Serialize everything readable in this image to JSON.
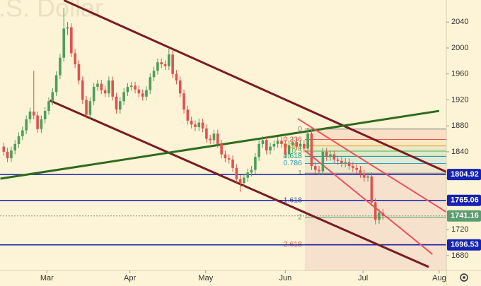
{
  "chart_data": {
    "type": "candlestick",
    "watermark": "U.S. Dollar",
    "up_color": "#4c9f5a",
    "down_color": "#e0524f",
    "open": [
      1848,
      1840,
      1830,
      1842,
      1852,
      1864,
      1873,
      1890,
      1902,
      1896,
      1875,
      1890,
      1903,
      1918,
      1932,
      1958,
      1985,
      2030,
      2032,
      1992,
      1975,
      1950,
      1920,
      1897,
      1918,
      1940,
      1945,
      1935,
      1930,
      1950,
      1925,
      1905,
      1918,
      1932,
      1940,
      1942,
      1936,
      1930,
      1925,
      1935,
      1955,
      1965,
      1978,
      1975,
      1972,
      1990,
      1960,
      1950,
      1930,
      1905,
      1888,
      1882,
      1878,
      1885,
      1876,
      1860,
      1858,
      1868,
      1852,
      1836,
      1830,
      1828,
      1815,
      1798,
      1792,
      1800,
      1808,
      1812,
      1832,
      1852,
      1858,
      1842,
      1848,
      1852,
      1857,
      1852,
      1836,
      1850,
      1855,
      1848,
      1852,
      1845,
      1868,
      1818,
      1812,
      1810,
      1840,
      1832,
      1836,
      1828,
      1826,
      1822,
      1824,
      1818,
      1815,
      1812,
      1806,
      1800,
      1802,
      1762,
      1735,
      1746
    ],
    "high": [
      1854,
      1846,
      1848,
      1858,
      1870,
      1879,
      1896,
      1908,
      1965,
      1902,
      1896,
      1909,
      1924,
      1938,
      1964,
      1991,
      2062,
      2040,
      2038,
      1998,
      1981,
      1956,
      1926,
      1924,
      1946,
      1951,
      1951,
      1941,
      1956,
      1956,
      1931,
      1924,
      1938,
      1946,
      1948,
      1948,
      1942,
      1936,
      1941,
      1961,
      1971,
      1984,
      1984,
      1981,
      2000,
      1996,
      1966,
      1956,
      1936,
      1911,
      1894,
      1888,
      1891,
      1891,
      1882,
      1866,
      1874,
      1874,
      1858,
      1842,
      1836,
      1834,
      1821,
      1804,
      1806,
      1814,
      1818,
      1838,
      1858,
      1864,
      1864,
      1854,
      1858,
      1863,
      1863,
      1858,
      1856,
      1861,
      1861,
      1858,
      1858,
      1877,
      1874,
      1824,
      1818,
      1846,
      1846,
      1842,
      1842,
      1834,
      1832,
      1830,
      1830,
      1824,
      1821,
      1818,
      1812,
      1808,
      1808,
      1768,
      1752,
      1752
    ],
    "low": [
      1834,
      1824,
      1824,
      1836,
      1846,
      1858,
      1867,
      1884,
      1890,
      1869,
      1869,
      1884,
      1897,
      1912,
      1926,
      1952,
      1979,
      2020,
      1986,
      1969,
      1944,
      1914,
      1891,
      1891,
      1912,
      1934,
      1929,
      1924,
      1924,
      1919,
      1899,
      1899,
      1912,
      1926,
      1934,
      1930,
      1924,
      1919,
      1919,
      1929,
      1949,
      1959,
      1969,
      1966,
      1966,
      1954,
      1944,
      1924,
      1899,
      1882,
      1876,
      1872,
      1872,
      1870,
      1854,
      1852,
      1852,
      1846,
      1830,
      1824,
      1822,
      1809,
      1792,
      1778,
      1786,
      1794,
      1802,
      1806,
      1826,
      1846,
      1836,
      1836,
      1842,
      1846,
      1846,
      1830,
      1830,
      1844,
      1842,
      1842,
      1839,
      1839,
      1812,
      1806,
      1804,
      1804,
      1826,
      1826,
      1822,
      1820,
      1816,
      1816,
      1812,
      1809,
      1806,
      1800,
      1794,
      1794,
      1756,
      1728,
      1729,
      1735
    ],
    "close": [
      1840,
      1830,
      1842,
      1852,
      1864,
      1873,
      1890,
      1902,
      1896,
      1875,
      1890,
      1903,
      1918,
      1932,
      1958,
      1985,
      2030,
      2032,
      1992,
      1975,
      1950,
      1920,
      1897,
      1918,
      1940,
      1945,
      1935,
      1930,
      1950,
      1925,
      1905,
      1918,
      1932,
      1940,
      1942,
      1936,
      1930,
      1925,
      1935,
      1955,
      1965,
      1978,
      1975,
      1972,
      1990,
      1960,
      1950,
      1930,
      1905,
      1888,
      1882,
      1878,
      1885,
      1876,
      1860,
      1858,
      1868,
      1852,
      1836,
      1830,
      1828,
      1815,
      1798,
      1792,
      1800,
      1808,
      1812,
      1832,
      1852,
      1858,
      1842,
      1848,
      1852,
      1857,
      1852,
      1836,
      1850,
      1855,
      1848,
      1852,
      1845,
      1868,
      1818,
      1812,
      1810,
      1840,
      1832,
      1836,
      1828,
      1826,
      1822,
      1824,
      1818,
      1815,
      1812,
      1806,
      1800,
      1802,
      1762,
      1735,
      1746,
      1741
    ],
    "xlim": [
      -1,
      117.9
    ],
    "xticks": [
      {
        "value": 11.5,
        "label": "Mar"
      },
      {
        "value": 33.6,
        "label": "Apr"
      },
      {
        "value": 53.8,
        "label": "May"
      },
      {
        "value": 75,
        "label": "Jun"
      },
      {
        "value": 95.7,
        "label": "Jul"
      },
      {
        "value": 116,
        "label": "Aug"
      }
    ],
    "ylim": [
      1657,
      2074
    ],
    "yticks": [
      1680,
      1720,
      1760,
      1800,
      1840,
      1880,
      1920,
      1960,
      2000,
      2040
    ],
    "lines": [
      {
        "x": [
          16,
          117.9
        ],
        "y": [
          2073.7,
          1809
        ],
        "color": "#7a1c24",
        "width": 3
      },
      {
        "x": [
          12.3,
          113.2
        ],
        "y": [
          1919,
          1662.5
        ],
        "color": "#7a1c24",
        "width": 3
      },
      {
        "x": [
          -0.9,
          116
        ],
        "y": [
          1798.5,
          1903
        ],
        "color": "#2e6b1e",
        "width": 3
      },
      {
        "x": [
          78.3,
          117.9
        ],
        "y": [
          1891,
          1747
        ],
        "color": "#f0505e",
        "width": 2
      },
      {
        "x": [
          80.2,
          114.2
        ],
        "y": [
          1842,
          1682
        ],
        "color": "#f0505e",
        "width": 2
      }
    ],
    "fib": {
      "x_start": 80.2,
      "levels": [
        {
          "ratio": 0,
          "value": 1875,
          "color": "#808080"
        },
        {
          "ratio": 0.236,
          "value": 1859,
          "color": "#e0524f"
        },
        {
          "ratio": 0.382,
          "value": 1849,
          "color": "#ef9a2a"
        },
        {
          "ratio": 0.5,
          "value": 1841,
          "color": "#4caf50"
        },
        {
          "ratio": 0.618,
          "value": 1833,
          "color": "#089981"
        },
        {
          "ratio": 0.786,
          "value": 1822,
          "color": "#2aa0c0"
        },
        {
          "ratio": 1,
          "value": 1807,
          "color": "#808080"
        },
        {
          "ratio": 1.618,
          "value": 1765,
          "color": "#3a4fa0"
        },
        {
          "ratio": 2,
          "value": 1739,
          "color": "#4caf50"
        },
        {
          "ratio": 2.618,
          "value": 1697,
          "color": "#e0524f"
        }
      ]
    },
    "levels": [
      {
        "value": 1804.92,
        "color": "#1622b0",
        "dash": false
      },
      {
        "value": 1765.06,
        "color": "#1622b0",
        "dash": false
      },
      {
        "value": 1741.16,
        "color": "#5b9c71",
        "dash": true
      },
      {
        "value": 1696.53,
        "color": "#1622b0",
        "dash": false
      }
    ]
  }
}
